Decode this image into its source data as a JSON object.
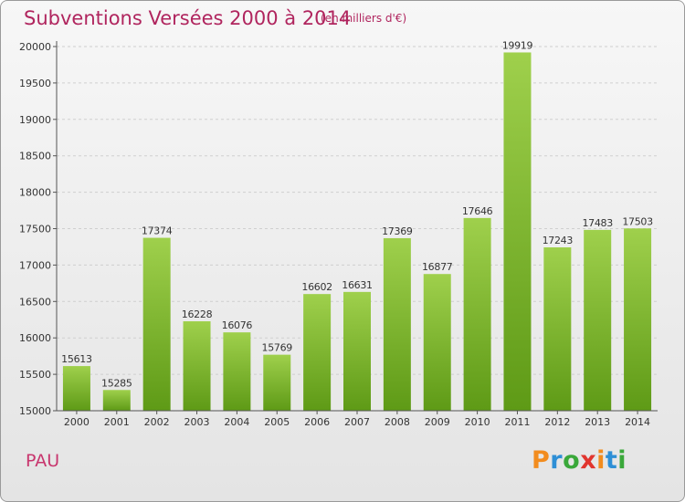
{
  "header": {
    "title": "Subventions Versées 2000 à 2014",
    "subtitle": "(en milliers d'€)"
  },
  "footer": {
    "commune": "PAU",
    "logo_text": "Proxiti"
  },
  "colors": {
    "title": "#b0255e",
    "bar_light": "#9fd04c",
    "bar_dark": "#5e9a16",
    "logo": [
      "#f28c1e",
      "#2e8fd6",
      "#3aa83a",
      "#e1352e",
      "#f28c1e",
      "#2e8fd6",
      "#3aa83a"
    ]
  },
  "chart_data": {
    "type": "bar",
    "categories": [
      "2000",
      "2001",
      "2002",
      "2003",
      "2004",
      "2005",
      "2006",
      "2007",
      "2008",
      "2009",
      "2010",
      "2011",
      "2012",
      "2013",
      "2014"
    ],
    "values": [
      15613,
      15285,
      17374,
      16228,
      16076,
      15769,
      16602,
      16631,
      17369,
      16877,
      17646,
      19919,
      17243,
      17483,
      17503
    ],
    "ylim": [
      15000,
      20000
    ],
    "yticks": [
      15000,
      15500,
      16000,
      16500,
      17000,
      17500,
      18000,
      18500,
      19000,
      19500,
      20000
    ],
    "grid": true,
    "data_labels": true
  }
}
